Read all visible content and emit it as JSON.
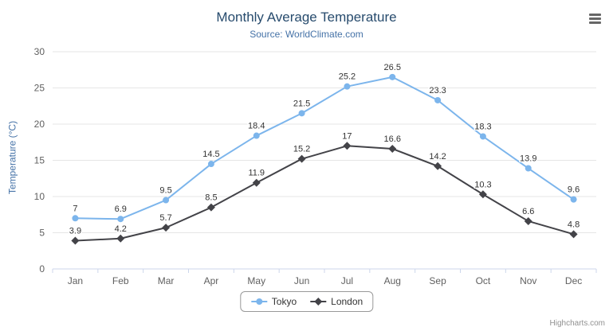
{
  "chart_data": {
    "type": "line",
    "title": "Monthly Average Temperature",
    "subtitle": "Source: WorldClimate.com",
    "categories": [
      "Jan",
      "Feb",
      "Mar",
      "Apr",
      "May",
      "Jun",
      "Jul",
      "Aug",
      "Sep",
      "Oct",
      "Nov",
      "Dec"
    ],
    "series": [
      {
        "name": "Tokyo",
        "color": "#7cb5ec",
        "marker": "circle",
        "values": [
          7,
          6.9,
          9.5,
          14.5,
          18.4,
          21.5,
          25.2,
          26.5,
          23.3,
          18.3,
          13.9,
          9.6
        ]
      },
      {
        "name": "London",
        "color": "#434348",
        "marker": "diamond",
        "values": [
          3.9,
          4.2,
          5.7,
          8.5,
          11.9,
          15.2,
          17,
          16.6,
          14.2,
          10.3,
          6.6,
          4.8
        ]
      }
    ],
    "xlabel": "",
    "ylabel": "Temperature (°C)",
    "ylim": [
      0,
      30
    ],
    "yticks": [
      0,
      5,
      10,
      15,
      20,
      25,
      30
    ],
    "grid": true,
    "legend_position": "bottom",
    "data_labels": true
  },
  "credits": {
    "label": "Highcharts.com"
  },
  "icons": {
    "context_menu": "hamburger-menu-icon"
  },
  "colors": {
    "title": "#274b6d",
    "subtitle": "#4572a7",
    "axis_title": "#4572a7",
    "grid_line": "#e6e6e6",
    "axis_line": "#ccd6eb",
    "tick_label": "#606060",
    "data_label": "#333333"
  }
}
